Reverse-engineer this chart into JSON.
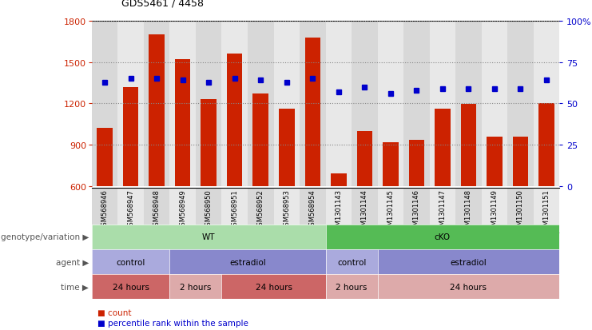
{
  "title": "GDS5461 / 4458",
  "samples": [
    "GSM568946",
    "GSM568947",
    "GSM568948",
    "GSM568949",
    "GSM568950",
    "GSM568951",
    "GSM568952",
    "GSM568953",
    "GSM568954",
    "GSM1301143",
    "GSM1301144",
    "GSM1301145",
    "GSM1301146",
    "GSM1301147",
    "GSM1301148",
    "GSM1301149",
    "GSM1301150",
    "GSM1301151"
  ],
  "counts": [
    1020,
    1320,
    1700,
    1520,
    1230,
    1560,
    1270,
    1160,
    1680,
    690,
    1000,
    920,
    935,
    1160,
    1195,
    960,
    960,
    1200
  ],
  "percentiles": [
    63,
    65,
    65,
    64,
    63,
    65,
    64,
    63,
    65,
    57,
    60,
    56,
    58,
    59,
    59,
    59,
    59,
    64
  ],
  "bar_color": "#cc2200",
  "dot_color": "#0000cc",
  "ymin": 600,
  "ymax": 1800,
  "yticks": [
    600,
    900,
    1200,
    1500,
    1800
  ],
  "right_yticks": [
    0,
    25,
    50,
    75,
    100
  ],
  "genotype_groups": [
    {
      "label": "WT",
      "start": 0,
      "end": 9,
      "color": "#aaddaa"
    },
    {
      "label": "cKO",
      "start": 9,
      "end": 18,
      "color": "#55bb55"
    }
  ],
  "agent_groups": [
    {
      "label": "control",
      "start": 0,
      "end": 3,
      "color": "#aaaadd"
    },
    {
      "label": "estradiol",
      "start": 3,
      "end": 9,
      "color": "#8888cc"
    },
    {
      "label": "control",
      "start": 9,
      "end": 11,
      "color": "#aaaadd"
    },
    {
      "label": "estradiol",
      "start": 11,
      "end": 18,
      "color": "#8888cc"
    }
  ],
  "time_groups": [
    {
      "label": "24 hours",
      "start": 0,
      "end": 3,
      "color": "#cc6666"
    },
    {
      "label": "2 hours",
      "start": 3,
      "end": 5,
      "color": "#ddaaaa"
    },
    {
      "label": "24 hours",
      "start": 5,
      "end": 9,
      "color": "#cc6666"
    },
    {
      "label": "2 hours",
      "start": 9,
      "end": 11,
      "color": "#ddaaaa"
    },
    {
      "label": "24 hours",
      "start": 11,
      "end": 18,
      "color": "#ddaaaa"
    }
  ],
  "background_color": "#ffffff"
}
